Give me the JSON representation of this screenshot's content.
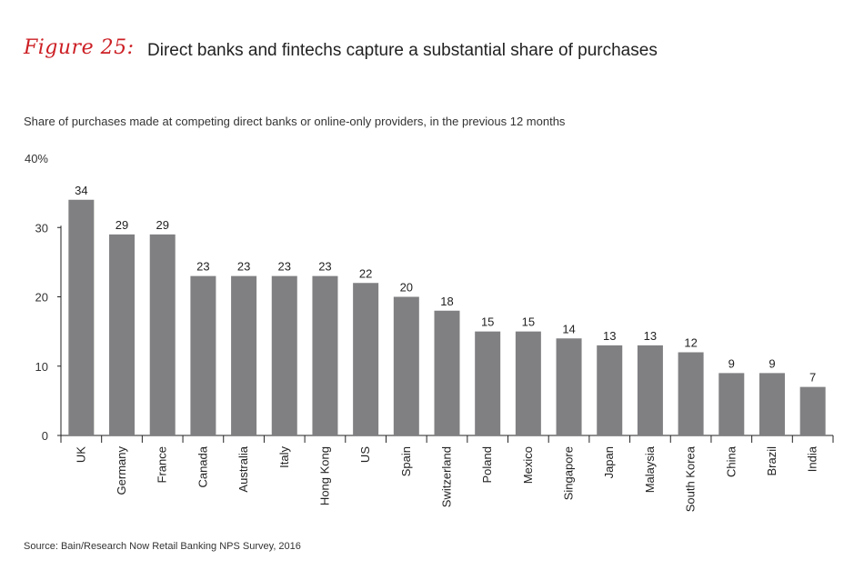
{
  "figure": {
    "label": "Figure 25:",
    "title": "Direct banks and fintechs capture a substantial share of purchases",
    "subtitle": "Share of purchases made at competing direct banks or online-only providers, in the previous 12 months",
    "source": "Source: Bain/Research Now Retail Banking NPS Survey, 2016"
  },
  "colors": {
    "bar": "#808083",
    "accent": "#cc1f24",
    "axis": "#222222"
  },
  "chart_data": {
    "type": "bar",
    "categories": [
      "UK",
      "Germany",
      "France",
      "Canada",
      "Australia",
      "Italy",
      "Hong Kong",
      "US",
      "Spain",
      "Switzerland",
      "Poland",
      "Mexico",
      "Singapore",
      "Japan",
      "Malaysia",
      "South Korea",
      "China",
      "Brazil",
      "India"
    ],
    "values": [
      34,
      29,
      29,
      23,
      23,
      23,
      23,
      22,
      20,
      18,
      15,
      15,
      14,
      13,
      13,
      12,
      9,
      9,
      7
    ],
    "value_labels": [
      "34",
      "29",
      "29",
      "23",
      "23",
      "23",
      "23",
      "22",
      "20",
      "18",
      "15",
      "15",
      "14",
      "13",
      "13",
      "12",
      "9",
      "9",
      "7"
    ],
    "ylim": [
      0,
      40
    ],
    "yticks": [
      0,
      10,
      20,
      30,
      40
    ],
    "ytick_labels": [
      "0",
      "10",
      "20",
      "30",
      "40%"
    ],
    "grid": false,
    "legend": "none"
  }
}
